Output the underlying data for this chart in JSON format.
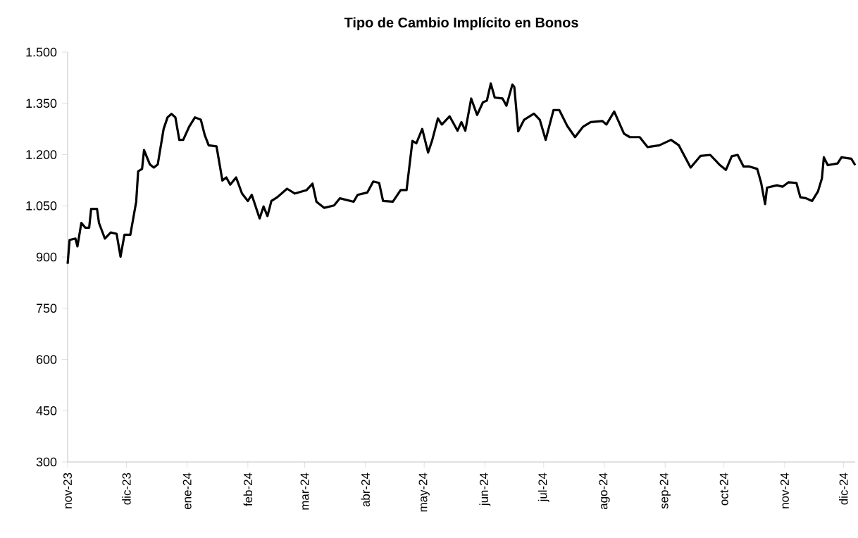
{
  "chart_data": {
    "type": "line",
    "title": "Tipo de Cambio Implícito en Bonos",
    "color": "#000000",
    "x": [
      "2023-11-01",
      "2023-11-02",
      "2023-11-05",
      "2023-11-06",
      "2023-11-08",
      "2023-11-10",
      "2023-11-12",
      "2023-11-13",
      "2023-11-16",
      "2023-11-17",
      "2023-11-20",
      "2023-11-23",
      "2023-11-26",
      "2023-11-28",
      "2023-11-30",
      "2023-12-03",
      "2023-12-06",
      "2023-12-07",
      "2023-12-09",
      "2023-12-10",
      "2023-12-13",
      "2023-12-15",
      "2023-12-17",
      "2023-12-20",
      "2023-12-22",
      "2023-12-24",
      "2023-12-26",
      "2023-12-28",
      "2023-12-30",
      "2024-01-02",
      "2024-01-05",
      "2024-01-08",
      "2024-01-10",
      "2024-01-12",
      "2024-01-16",
      "2024-01-19",
      "2024-01-21",
      "2024-01-23",
      "2024-01-26",
      "2024-01-29",
      "2024-02-01",
      "2024-02-03",
      "2024-02-07",
      "2024-02-09",
      "2024-02-11",
      "2024-02-13",
      "2024-02-16",
      "2024-02-21",
      "2024-02-25",
      "2024-03-02",
      "2024-03-05",
      "2024-03-07",
      "2024-03-11",
      "2024-03-16",
      "2024-03-19",
      "2024-03-26",
      "2024-03-28",
      "2024-04-02",
      "2024-04-05",
      "2024-04-08",
      "2024-04-10",
      "2024-04-15",
      "2024-04-19",
      "2024-04-22",
      "2024-04-25",
      "2024-04-27",
      "2024-04-30",
      "2024-05-03",
      "2024-05-05",
      "2024-05-08",
      "2024-05-10",
      "2024-05-14",
      "2024-05-18",
      "2024-05-20",
      "2024-05-22",
      "2024-05-25",
      "2024-05-28",
      "2024-05-31",
      "2024-06-02",
      "2024-06-04",
      "2024-06-06",
      "2024-06-10",
      "2024-06-12",
      "2024-06-15",
      "2024-06-16",
      "2024-06-18",
      "2024-06-21",
      "2024-06-26",
      "2024-06-29",
      "2024-07-02",
      "2024-07-06",
      "2024-07-09",
      "2024-07-13",
      "2024-07-17",
      "2024-07-21",
      "2024-07-25",
      "2024-07-31",
      "2024-08-02",
      "2024-08-06",
      "2024-08-11",
      "2024-08-14",
      "2024-08-19",
      "2024-08-23",
      "2024-08-29",
      "2024-09-04",
      "2024-09-08",
      "2024-09-14",
      "2024-09-19",
      "2024-09-24",
      "2024-09-29",
      "2024-10-02",
      "2024-10-05",
      "2024-10-08",
      "2024-10-11",
      "2024-10-14",
      "2024-10-18",
      "2024-10-20",
      "2024-10-22",
      "2024-10-23",
      "2024-10-28",
      "2024-10-31",
      "2024-11-03",
      "2024-11-07",
      "2024-11-09",
      "2024-11-12",
      "2024-11-15",
      "2024-11-18",
      "2024-11-20",
      "2024-11-21",
      "2024-11-23",
      "2024-11-28",
      "2024-11-30",
      "2024-12-05",
      "2024-12-07"
    ],
    "values": [
      880,
      950,
      954,
      931,
      1000,
      986,
      986,
      1041,
      1041,
      1000,
      954,
      972,
      968,
      901,
      965,
      965,
      1062,
      1151,
      1158,
      1213,
      1171,
      1162,
      1171,
      1275,
      1309,
      1319,
      1309,
      1243,
      1243,
      1281,
      1309,
      1302,
      1257,
      1227,
      1224,
      1124,
      1133,
      1112,
      1133,
      1086,
      1064,
      1082,
      1013,
      1048,
      1020,
      1064,
      1075,
      1100,
      1086,
      1096,
      1115,
      1062,
      1044,
      1051,
      1072,
      1062,
      1082,
      1089,
      1121,
      1117,
      1064,
      1062,
      1096,
      1096,
      1240,
      1233,
      1275,
      1206,
      1240,
      1306,
      1288,
      1312,
      1270,
      1295,
      1270,
      1364,
      1316,
      1353,
      1358,
      1408,
      1367,
      1364,
      1343,
      1405,
      1398,
      1268,
      1302,
      1320,
      1302,
      1243,
      1330,
      1330,
      1284,
      1251,
      1281,
      1295,
      1298,
      1288,
      1326,
      1261,
      1251,
      1251,
      1222,
      1227,
      1243,
      1227,
      1162,
      1196,
      1199,
      1169,
      1155,
      1195,
      1199,
      1165,
      1165,
      1158,
      1117,
      1055,
      1103,
      1110,
      1106,
      1119,
      1117,
      1075,
      1072,
      1064,
      1092,
      1130,
      1192,
      1169,
      1174,
      1192,
      1188,
      1169
    ],
    "xlim": [
      "2023-11-01",
      "2024-12-07"
    ],
    "ylim": [
      300,
      1500
    ],
    "xticks": [
      {
        "value": "2023-11-01",
        "label": "nov-23"
      },
      {
        "value": "2023-12-01",
        "label": "dic-23"
      },
      {
        "value": "2024-01-01",
        "label": "ene-24"
      },
      {
        "value": "2024-02-01",
        "label": "feb-24"
      },
      {
        "value": "2024-03-01",
        "label": "mar-24"
      },
      {
        "value": "2024-04-01",
        "label": "abr-24"
      },
      {
        "value": "2024-05-01",
        "label": "may-24"
      },
      {
        "value": "2024-06-01",
        "label": "jun-24"
      },
      {
        "value": "2024-07-01",
        "label": "jul-24"
      },
      {
        "value": "2024-08-01",
        "label": "ago-24"
      },
      {
        "value": "2024-09-01",
        "label": "sep-24"
      },
      {
        "value": "2024-10-01",
        "label": "oct-24"
      },
      {
        "value": "2024-11-01",
        "label": "nov-24"
      },
      {
        "value": "2024-12-01",
        "label": "dic-24"
      }
    ],
    "yticks": [
      {
        "value": 300,
        "label": "300"
      },
      {
        "value": 450,
        "label": "450"
      },
      {
        "value": 600,
        "label": "600"
      },
      {
        "value": 750,
        "label": "750"
      },
      {
        "value": 900,
        "label": "900"
      },
      {
        "value": 1050,
        "label": "1.050"
      },
      {
        "value": 1200,
        "label": "1.200"
      },
      {
        "value": 1350,
        "label": "1.350"
      },
      {
        "value": 1500,
        "label": "1.500"
      }
    ]
  }
}
